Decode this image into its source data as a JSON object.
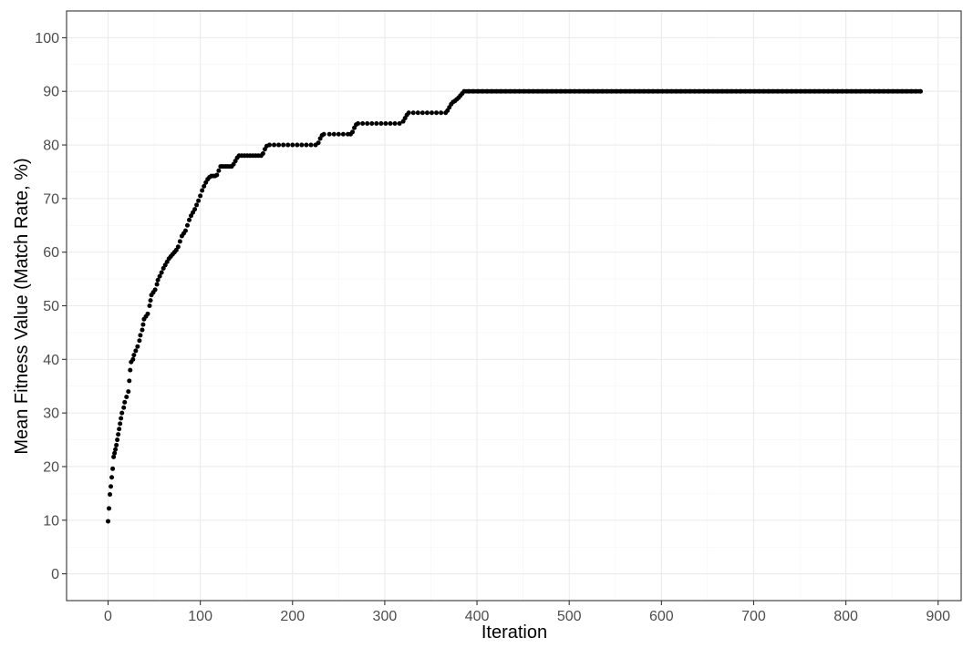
{
  "chart_data": {
    "type": "scatter",
    "title": "",
    "xlabel": "Iteration",
    "ylabel": "Mean Fitness Value (Match Rate, %)",
    "xlim": [
      -45,
      925
    ],
    "ylim": [
      -5,
      105
    ],
    "x_ticks": [
      0,
      100,
      200,
      300,
      400,
      500,
      600,
      700,
      800,
      900
    ],
    "x_tick_labels": [
      "0",
      "100",
      "200",
      "300",
      "400",
      "500",
      "600",
      "700",
      "800",
      "900"
    ],
    "y_ticks": [
      0,
      10,
      20,
      30,
      40,
      50,
      60,
      70,
      80,
      90,
      100
    ],
    "y_tick_labels": [
      "0",
      "10",
      "20",
      "30",
      "40",
      "50",
      "60",
      "70",
      "80",
      "90",
      "100"
    ],
    "grid": true,
    "legend": "none",
    "colors": {
      "points": "#000000",
      "grid_major": "#ebebeb",
      "grid_minor": "#f5f5f5",
      "panel_border": "#333333"
    },
    "series": [
      {
        "points": [
          [
            0,
            9.8
          ],
          [
            1,
            12.2
          ],
          [
            2,
            14.8
          ],
          [
            3,
            16.3
          ],
          [
            4,
            18.0
          ],
          [
            5,
            19.6
          ],
          [
            6,
            21.8
          ],
          [
            7,
            22.5
          ],
          [
            8,
            23.2
          ],
          [
            9,
            24.0
          ],
          [
            10,
            25.0
          ],
          [
            11,
            26.0
          ],
          [
            12,
            27.0
          ],
          [
            13,
            28.0
          ],
          [
            14,
            29.0
          ],
          [
            15,
            30.0
          ],
          [
            17,
            31.0
          ],
          [
            18,
            32.0
          ],
          [
            20,
            33.0
          ],
          [
            22,
            34.0
          ],
          [
            23,
            36.0
          ],
          [
            24,
            38.0
          ],
          [
            25,
            39.5
          ],
          [
            27,
            40.0
          ],
          [
            28,
            40.8
          ],
          [
            30,
            41.6
          ],
          [
            32,
            42.4
          ],
          [
            34,
            43.5
          ],
          [
            35,
            44.5
          ],
          [
            37,
            45.5
          ],
          [
            38,
            46.5
          ],
          [
            39,
            47.5
          ],
          [
            41,
            48.0
          ],
          [
            43,
            48.5
          ],
          [
            45,
            50.0
          ],
          [
            46,
            51.0
          ],
          [
            47,
            52.0
          ],
          [
            49,
            52.5
          ],
          [
            51,
            53.0
          ],
          [
            53,
            54.0
          ],
          [
            54,
            54.8
          ],
          [
            56,
            55.5
          ],
          [
            58,
            56.2
          ],
          [
            60,
            57.0
          ],
          [
            62,
            57.6
          ],
          [
            64,
            58.2
          ],
          [
            66,
            58.8
          ],
          [
            68,
            59.2
          ],
          [
            70,
            59.6
          ],
          [
            72,
            60.0
          ],
          [
            74,
            60.4
          ],
          [
            76,
            61.0
          ],
          [
            78,
            62.0
          ],
          [
            80,
            63.0
          ],
          [
            82,
            63.5
          ],
          [
            84,
            64.0
          ],
          [
            86,
            65.0
          ],
          [
            88,
            66.0
          ],
          [
            90,
            66.8
          ],
          [
            92,
            67.4
          ],
          [
            94,
            68.0
          ],
          [
            96,
            68.8
          ],
          [
            98,
            69.6
          ],
          [
            100,
            70.5
          ],
          [
            102,
            71.5
          ],
          [
            104,
            72.3
          ],
          [
            106,
            73.0
          ],
          [
            108,
            73.6
          ],
          [
            110,
            74.0
          ],
          [
            112,
            74.2
          ],
          [
            114,
            74.2
          ],
          [
            116,
            74.2
          ],
          [
            118,
            74.4
          ],
          [
            120,
            75.2
          ],
          [
            122,
            76.0
          ],
          [
            124,
            76.0
          ],
          [
            126,
            76.0
          ],
          [
            128,
            76.0
          ],
          [
            130,
            76.0
          ],
          [
            132,
            76.0
          ],
          [
            134,
            76.0
          ],
          [
            136,
            76.4
          ],
          [
            138,
            77.0
          ],
          [
            140,
            77.6
          ],
          [
            142,
            78.0
          ],
          [
            145,
            78.0
          ],
          [
            148,
            78.0
          ],
          [
            151,
            78.0
          ],
          [
            154,
            78.0
          ],
          [
            157,
            78.0
          ],
          [
            160,
            78.0
          ],
          [
            163,
            78.0
          ],
          [
            166,
            78.0
          ],
          [
            168,
            78.4
          ],
          [
            170,
            79.2
          ],
          [
            172,
            79.8
          ],
          [
            175,
            80.0
          ],
          [
            180,
            80.0
          ],
          [
            185,
            80.0
          ],
          [
            190,
            80.0
          ],
          [
            195,
            80.0
          ],
          [
            200,
            80.0
          ],
          [
            205,
            80.0
          ],
          [
            210,
            80.0
          ],
          [
            215,
            80.0
          ],
          [
            220,
            80.0
          ],
          [
            225,
            80.0
          ],
          [
            228,
            80.4
          ],
          [
            230,
            81.2
          ],
          [
            232,
            81.8
          ],
          [
            234,
            82.0
          ],
          [
            240,
            82.0
          ],
          [
            245,
            82.0
          ],
          [
            250,
            82.0
          ],
          [
            255,
            82.0
          ],
          [
            260,
            82.0
          ],
          [
            263,
            82.0
          ],
          [
            265,
            82.4
          ],
          [
            267,
            83.2
          ],
          [
            269,
            83.8
          ],
          [
            271,
            84.0
          ],
          [
            276,
            84.0
          ],
          [
            281,
            84.0
          ],
          [
            286,
            84.0
          ],
          [
            291,
            84.0
          ],
          [
            296,
            84.0
          ],
          [
            301,
            84.0
          ],
          [
            306,
            84.0
          ],
          [
            311,
            84.0
          ],
          [
            316,
            84.0
          ],
          [
            320,
            84.4
          ],
          [
            322,
            85.0
          ],
          [
            324,
            85.6
          ],
          [
            326,
            86.0
          ],
          [
            331,
            86.0
          ],
          [
            336,
            86.0
          ],
          [
            341,
            86.0
          ],
          [
            346,
            86.0
          ],
          [
            351,
            86.0
          ],
          [
            356,
            86.0
          ],
          [
            361,
            86.0
          ],
          [
            366,
            86.0
          ],
          [
            368,
            86.4
          ],
          [
            370,
            87.0
          ],
          [
            372,
            87.6
          ],
          [
            374,
            88.0
          ],
          [
            376,
            88.2
          ],
          [
            378,
            88.5
          ],
          [
            380,
            88.8
          ],
          [
            382,
            89.2
          ],
          [
            384,
            89.6
          ],
          [
            386,
            90.0
          ],
          [
            391,
            90.0
          ],
          [
            396,
            90.0
          ],
          [
            401,
            90.0
          ],
          [
            406,
            90.0
          ],
          [
            411,
            90.0
          ],
          [
            416,
            90.0
          ],
          [
            421,
            90.0
          ],
          [
            426,
            90.0
          ],
          [
            431,
            90.0
          ],
          [
            436,
            90.0
          ],
          [
            441,
            90.0
          ],
          [
            446,
            90.0
          ],
          [
            451,
            90.0
          ],
          [
            456,
            90.0
          ],
          [
            461,
            90.0
          ],
          [
            466,
            90.0
          ],
          [
            471,
            90.0
          ],
          [
            476,
            90.0
          ],
          [
            481,
            90.0
          ],
          [
            486,
            90.0
          ],
          [
            491,
            90.0
          ],
          [
            496,
            90.0
          ],
          [
            501,
            90.0
          ],
          [
            506,
            90.0
          ],
          [
            511,
            90.0
          ],
          [
            516,
            90.0
          ],
          [
            521,
            90.0
          ],
          [
            526,
            90.0
          ],
          [
            531,
            90.0
          ],
          [
            536,
            90.0
          ],
          [
            541,
            90.0
          ],
          [
            546,
            90.0
          ],
          [
            551,
            90.0
          ],
          [
            556,
            90.0
          ],
          [
            561,
            90.0
          ],
          [
            566,
            90.0
          ],
          [
            571,
            90.0
          ],
          [
            576,
            90.0
          ],
          [
            581,
            90.0
          ],
          [
            586,
            90.0
          ],
          [
            591,
            90.0
          ],
          [
            596,
            90.0
          ],
          [
            601,
            90.0
          ],
          [
            606,
            90.0
          ],
          [
            611,
            90.0
          ],
          [
            616,
            90.0
          ],
          [
            621,
            90.0
          ],
          [
            626,
            90.0
          ],
          [
            631,
            90.0
          ],
          [
            636,
            90.0
          ],
          [
            641,
            90.0
          ],
          [
            646,
            90.0
          ],
          [
            651,
            90.0
          ],
          [
            656,
            90.0
          ],
          [
            661,
            90.0
          ],
          [
            666,
            90.0
          ],
          [
            671,
            90.0
          ],
          [
            676,
            90.0
          ],
          [
            681,
            90.0
          ],
          [
            686,
            90.0
          ],
          [
            691,
            90.0
          ],
          [
            696,
            90.0
          ],
          [
            701,
            90.0
          ],
          [
            706,
            90.0
          ],
          [
            711,
            90.0
          ],
          [
            716,
            90.0
          ],
          [
            721,
            90.0
          ],
          [
            726,
            90.0
          ],
          [
            731,
            90.0
          ],
          [
            736,
            90.0
          ],
          [
            741,
            90.0
          ],
          [
            746,
            90.0
          ],
          [
            751,
            90.0
          ],
          [
            756,
            90.0
          ],
          [
            761,
            90.0
          ],
          [
            766,
            90.0
          ],
          [
            771,
            90.0
          ],
          [
            776,
            90.0
          ],
          [
            781,
            90.0
          ],
          [
            786,
            90.0
          ],
          [
            791,
            90.0
          ],
          [
            796,
            90.0
          ],
          [
            801,
            90.0
          ],
          [
            806,
            90.0
          ],
          [
            811,
            90.0
          ],
          [
            816,
            90.0
          ],
          [
            821,
            90.0
          ],
          [
            826,
            90.0
          ],
          [
            831,
            90.0
          ],
          [
            836,
            90.0
          ],
          [
            841,
            90.0
          ],
          [
            846,
            90.0
          ],
          [
            851,
            90.0
          ],
          [
            856,
            90.0
          ],
          [
            861,
            90.0
          ],
          [
            866,
            90.0
          ],
          [
            871,
            90.0
          ],
          [
            876,
            90.0
          ],
          [
            881,
            90.0
          ]
        ]
      }
    ]
  }
}
